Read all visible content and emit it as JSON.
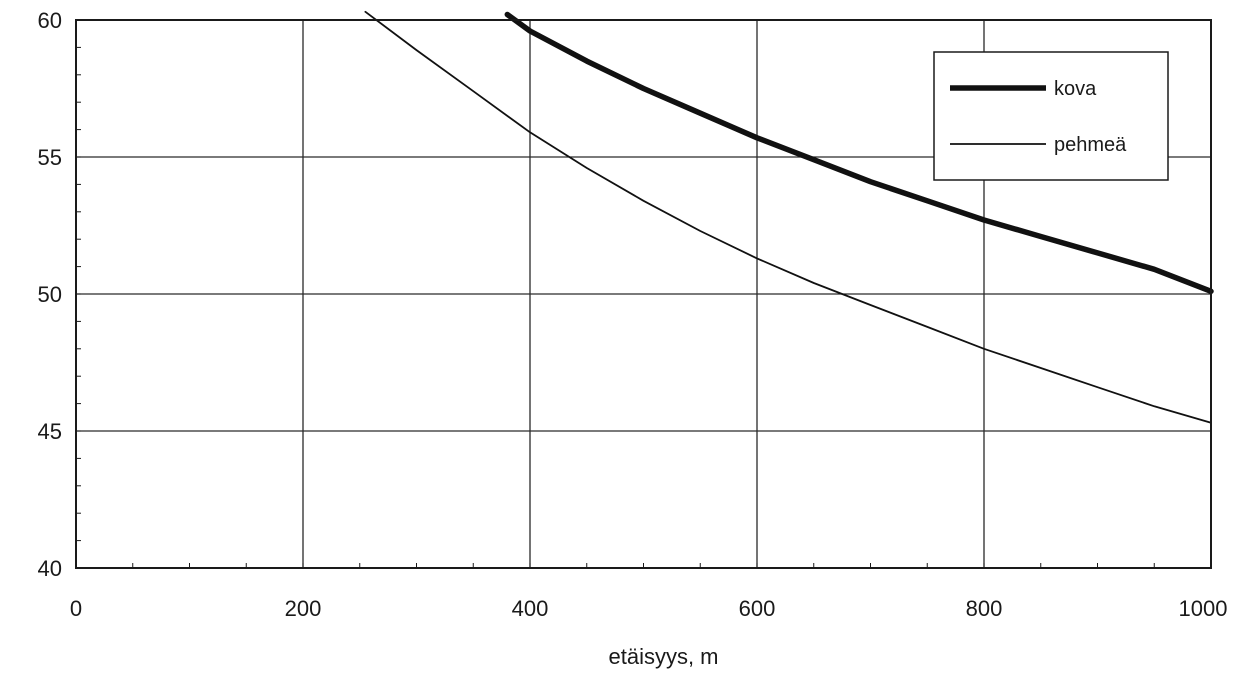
{
  "chart_data": {
    "type": "line",
    "title": "",
    "xlabel": "etäisyys, m",
    "ylabel": "",
    "xlim": [
      0,
      1000
    ],
    "ylim": [
      40,
      60
    ],
    "x_ticks": [
      0,
      200,
      400,
      600,
      800,
      1000
    ],
    "y_ticks": [
      40,
      45,
      50,
      55,
      60
    ],
    "x_tick_labels": [
      "0",
      "200",
      "400",
      "600",
      "800",
      "1000"
    ],
    "y_tick_labels": [
      "40",
      "45",
      "50",
      "55",
      "60"
    ],
    "grid": true,
    "legend_position": "top-right",
    "series": [
      {
        "name": "kova",
        "style": "thick",
        "color": "#111111",
        "x": [
          380,
          400,
          450,
          500,
          550,
          600,
          650,
          700,
          750,
          800,
          850,
          900,
          950,
          1000
        ],
        "y": [
          60.2,
          59.6,
          58.5,
          57.5,
          56.6,
          55.7,
          54.9,
          54.1,
          53.4,
          52.7,
          52.1,
          51.5,
          50.9,
          50.1
        ]
      },
      {
        "name": "pehmeä",
        "style": "thin",
        "color": "#111111",
        "x": [
          255,
          300,
          350,
          400,
          450,
          500,
          550,
          600,
          650,
          700,
          750,
          800,
          850,
          900,
          950,
          1000
        ],
        "y": [
          60.3,
          58.9,
          57.4,
          55.9,
          54.6,
          53.4,
          52.3,
          51.3,
          50.4,
          49.6,
          48.8,
          48.0,
          47.3,
          46.6,
          45.9,
          45.3
        ]
      }
    ]
  }
}
